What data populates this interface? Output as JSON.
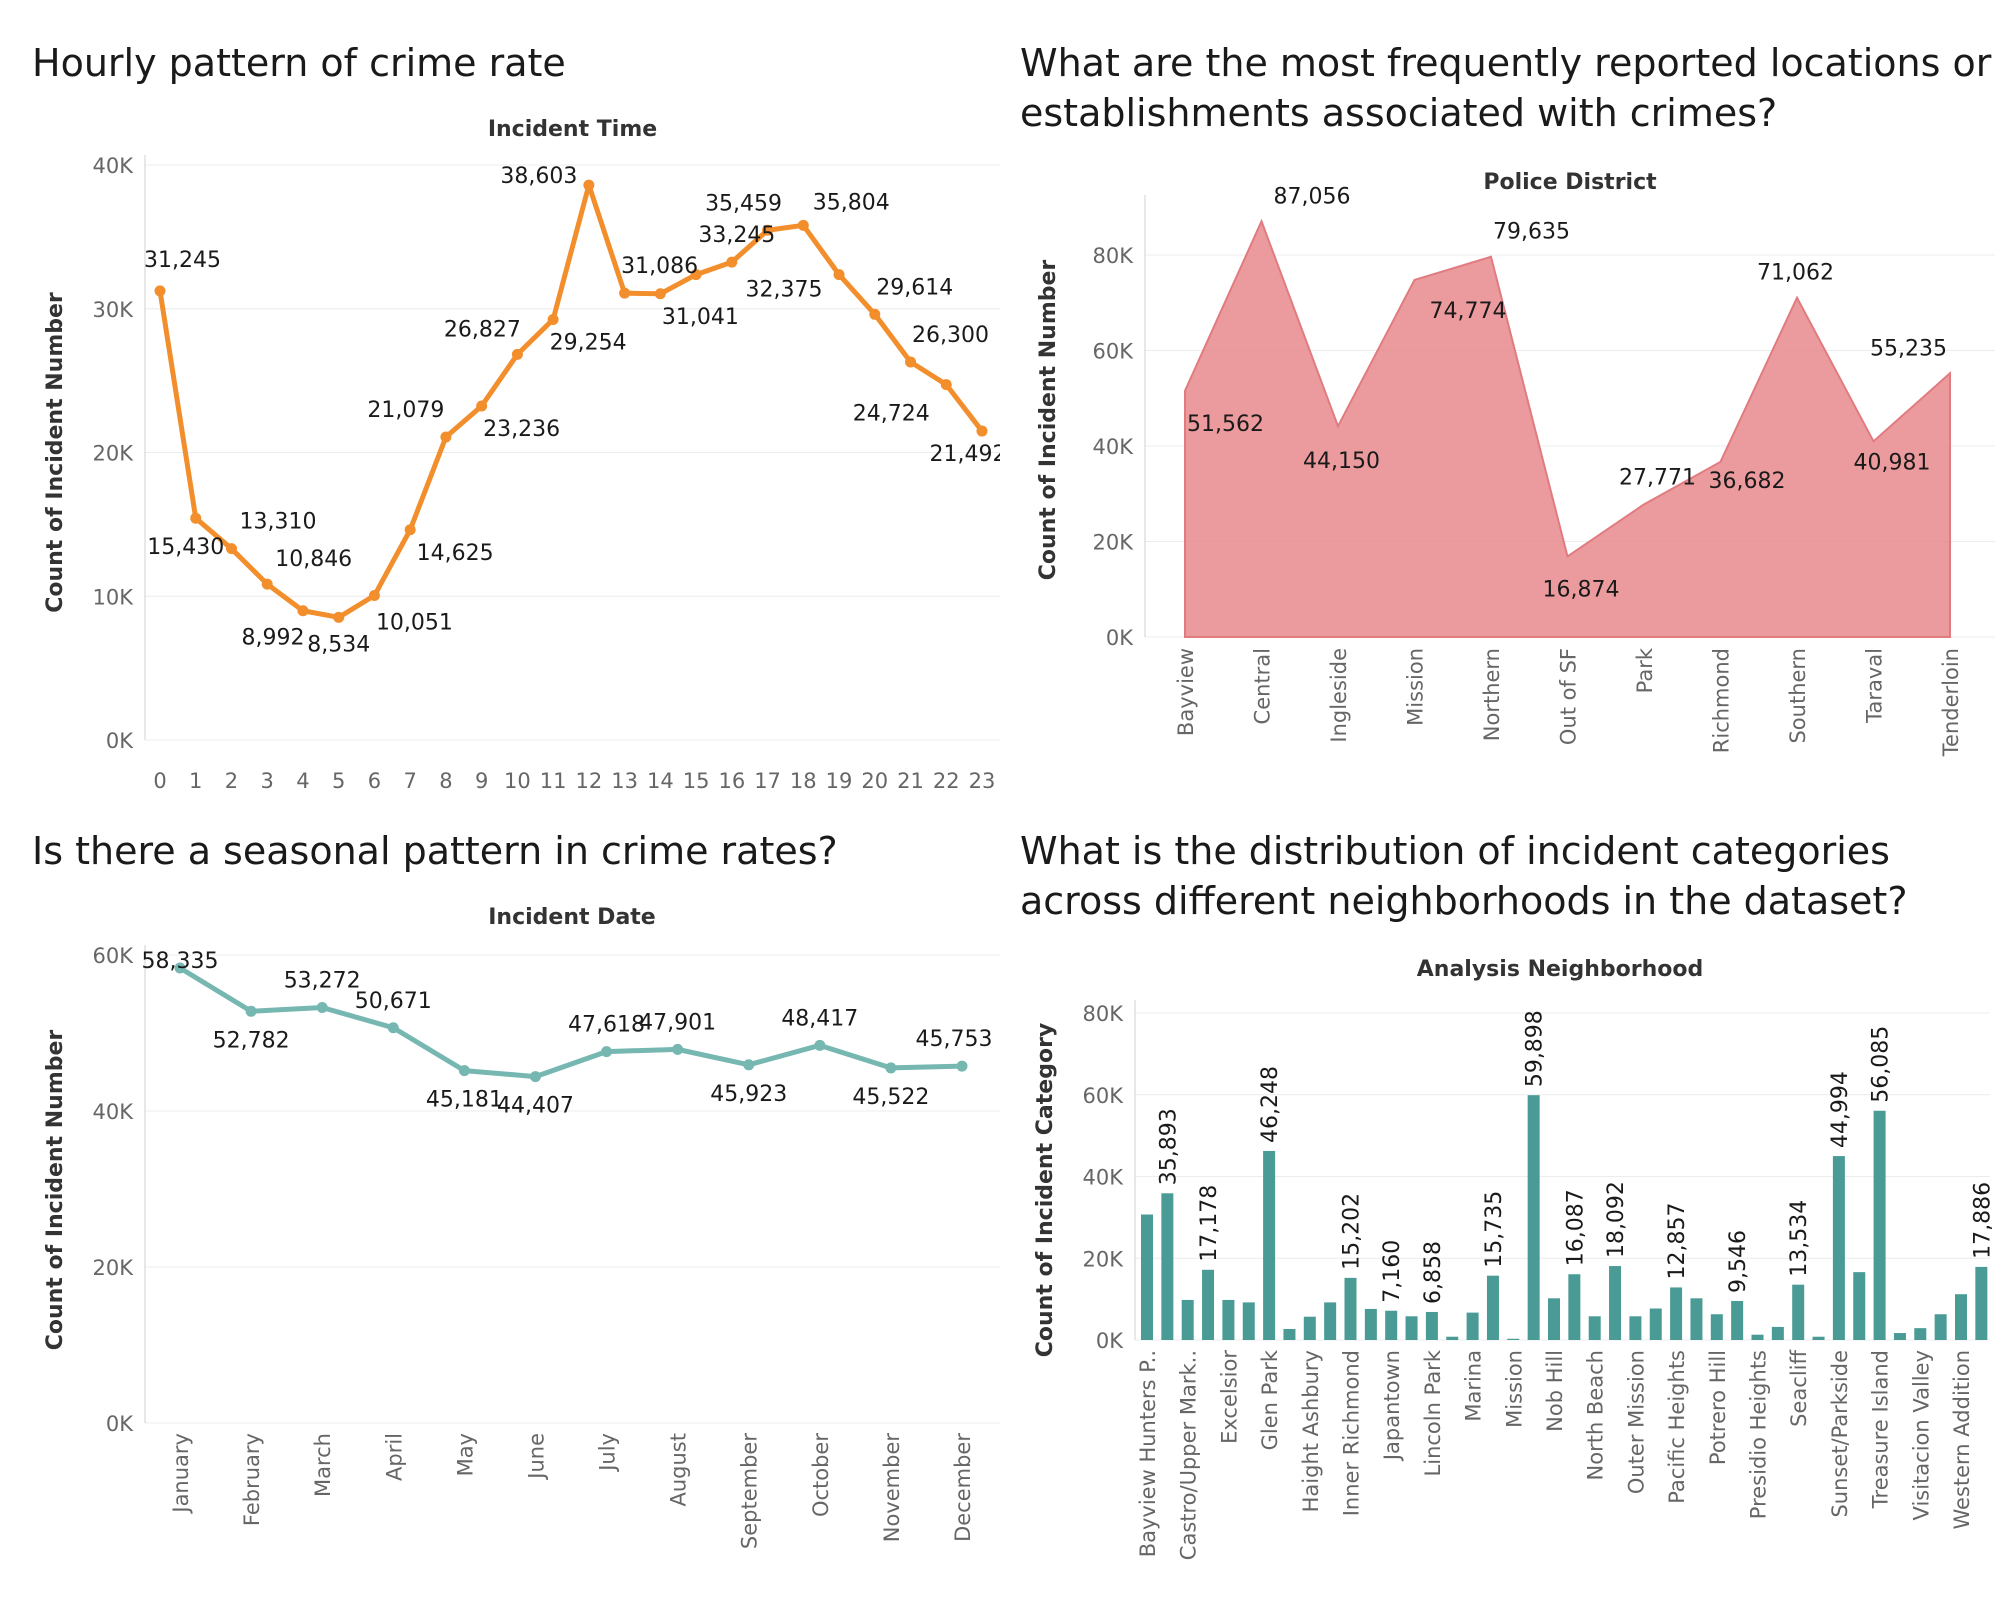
{
  "panels": {
    "hourly": {
      "heading": "Hourly pattern of crime rate",
      "chart_data": {
        "type": "line",
        "title": "Incident Time",
        "ylabel": "Count of Incident Number",
        "ylim": [
          0,
          40000
        ],
        "yticks": [
          "0K",
          "10K",
          "20K",
          "30K",
          "40K"
        ],
        "color": "#f28e2b",
        "categories": [
          "0",
          "1",
          "2",
          "3",
          "4",
          "5",
          "6",
          "7",
          "8",
          "9",
          "10",
          "11",
          "12",
          "13",
          "14",
          "15",
          "16",
          "17",
          "18",
          "19",
          "20",
          "21",
          "22",
          "23"
        ],
        "values": [
          31245,
          15430,
          13310,
          10846,
          8992,
          8534,
          10051,
          14625,
          21079,
          23236,
          26827,
          29254,
          38603,
          31086,
          31041,
          32375,
          33245,
          35459,
          35804,
          32375,
          29614,
          26300,
          24724,
          21492
        ],
        "labels": [
          "31,245",
          "15,430",
          "13,310",
          "10,846",
          "8,992",
          "8,534",
          "10,051",
          "14,625",
          "21,079",
          "23,236",
          "26,827",
          "29,254",
          "38,603",
          "31,086",
          "31,041",
          "32,375",
          "33,245",
          "35,459",
          "35,804",
          "",
          "29,614",
          "26,300",
          "24,724",
          "21,492"
        ],
        "grid": true
      }
    },
    "district": {
      "heading_lines": [
        "What are the most frequently reported locations or",
        "establishments associated with crimes?"
      ],
      "chart_data": {
        "type": "area",
        "title": "Police District",
        "ylabel": "Count of Incident Number",
        "ylim": [
          0,
          80000
        ],
        "yticks": [
          "0K",
          "20K",
          "40K",
          "60K",
          "80K"
        ],
        "color": "#e8898c",
        "categories": [
          "Bayview",
          "Central",
          "Ingleside",
          "Mission",
          "Northern",
          "Out of SF",
          "Park",
          "Richmond",
          "Southern",
          "Taraval",
          "Tenderloin"
        ],
        "values": [
          51562,
          87056,
          44150,
          74774,
          79635,
          16874,
          27771,
          36682,
          71062,
          40981,
          55235
        ],
        "labels": [
          "51,562",
          "87,056",
          "44,150",
          "74,774",
          "79,635",
          "16,874",
          "27,771",
          "36,682",
          "71,062",
          "40,981",
          "55,235"
        ],
        "grid": true
      }
    },
    "seasonal": {
      "heading": "Is there a seasonal pattern in crime rates?",
      "chart_data": {
        "type": "line",
        "title": "Incident Date",
        "ylabel": "Count of Incident Number",
        "ylim": [
          0,
          60000
        ],
        "yticks": [
          "0K",
          "20K",
          "40K",
          "60K"
        ],
        "color": "#76b7b2",
        "categories": [
          "January",
          "February",
          "March",
          "April",
          "May",
          "June",
          "July",
          "August",
          "September",
          "October",
          "November",
          "December"
        ],
        "values": [
          58335,
          52782,
          53272,
          50671,
          45181,
          44407,
          47618,
          47901,
          45923,
          48417,
          45522,
          45753
        ],
        "labels": [
          "58,335",
          "52,782",
          "53,272",
          "50,671",
          "45,181",
          "44,407",
          "47,618",
          "47,901",
          "45,923",
          "48,417",
          "45,522",
          "45,753"
        ],
        "grid": true
      }
    },
    "neighborhood": {
      "heading_lines": [
        "What is the distribution of incident categories",
        "across different neighborhoods in the dataset?"
      ],
      "chart_data": {
        "type": "bar",
        "title": "Analysis Neighborhood",
        "ylabel": "Count of Incident Category",
        "ylim": [
          0,
          80000
        ],
        "yticks": [
          "0K",
          "20K",
          "40K",
          "60K",
          "80K"
        ],
        "color": "#4a9a95",
        "values": [
          30700,
          35893,
          9800,
          17178,
          9800,
          9200,
          46248,
          2700,
          5700,
          9200,
          15202,
          7600,
          7160,
          5800,
          6858,
          800,
          6700,
          15735,
          300,
          59898,
          10200,
          16087,
          5800,
          18092,
          5800,
          7700,
          12857,
          10200,
          6300,
          9546,
          1300,
          3200,
          13534,
          800,
          44994,
          16600,
          56085,
          1700,
          2900,
          6300,
          11200,
          17886
        ],
        "labels": [
          "",
          "35,893",
          "",
          "17,178",
          "",
          "",
          "46,248",
          "",
          "",
          "",
          "15,202",
          "",
          "7,160",
          "",
          "6,858",
          "",
          "",
          "15,735",
          "",
          "59,898",
          "",
          "16,087",
          "",
          "18,092",
          "",
          "",
          "12,857",
          "",
          "",
          "9,546",
          "",
          "",
          "13,534",
          "",
          "44,994",
          "",
          "56,085",
          "",
          "",
          "",
          "",
          "17,886"
        ],
        "xtick_labels": [
          "Bayview Hunters P..",
          "",
          "Castro/Upper Mark..",
          "",
          "Excelsior",
          "",
          "Glen Park",
          "",
          "Haight Ashbury",
          "",
          "Inner Richmond",
          "",
          "Japantown",
          "",
          "Lincoln Park",
          "",
          "Marina",
          "",
          "Mission",
          "",
          "Nob Hill",
          "",
          "North Beach",
          "",
          "Outer Mission",
          "",
          "Pacific Heights",
          "",
          "Potrero Hill",
          "",
          "Presidio Heights",
          "",
          "Seacliff",
          "",
          "Sunset/Parkside",
          "",
          "Treasure Island",
          "",
          "Visitacion Valley",
          "",
          "Western Addition",
          ""
        ],
        "grid": true
      }
    }
  }
}
